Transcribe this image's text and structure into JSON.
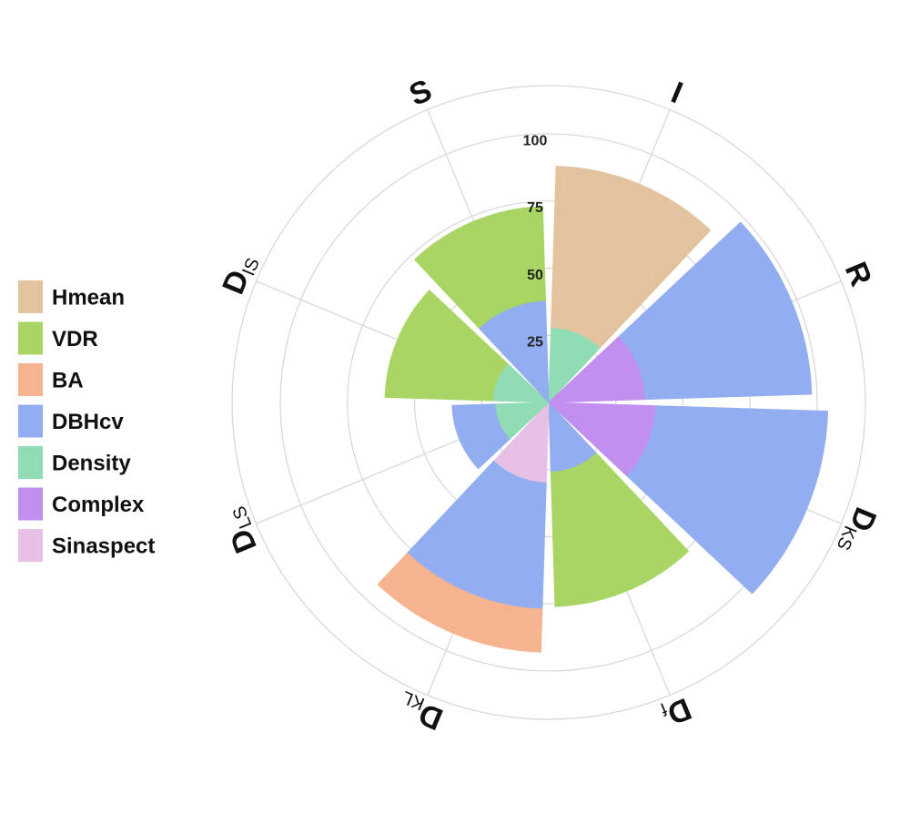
{
  "chart_data": {
    "type": "polar-stacked-bar",
    "categories": [
      "I",
      "R",
      "DKS",
      "Df",
      "DKL",
      "DLS",
      "DIS",
      "S"
    ],
    "series": [
      {
        "name": "Hmean",
        "color": "#e3c39d",
        "values": [
          60,
          null,
          null,
          null,
          null,
          null,
          null,
          null
        ]
      },
      {
        "name": "VDR",
        "color": "#a8d563",
        "values": [
          null,
          null,
          null,
          50,
          null,
          null,
          40,
          35
        ]
      },
      {
        "name": "BA",
        "color": "#f5b38f",
        "values": [
          null,
          null,
          null,
          null,
          16,
          null,
          null,
          null
        ]
      },
      {
        "name": "DBHcv",
        "color": "#92aef0",
        "values": [
          null,
          62,
          64,
          26,
          47,
          16,
          null,
          38
        ]
      },
      {
        "name": "Density",
        "color": "#90dcb5",
        "values": [
          28,
          null,
          null,
          null,
          null,
          20,
          21,
          null
        ]
      },
      {
        "name": "Complex",
        "color": "#c08ff0",
        "values": [
          null,
          36,
          40,
          null,
          null,
          null,
          null,
          null
        ]
      },
      {
        "name": "Sinaspect",
        "color": "#e7c0e6",
        "values": [
          null,
          null,
          null,
          null,
          30,
          null,
          null,
          null
        ]
      }
    ],
    "ylim": [
      0,
      118
    ],
    "yticks": [
      25,
      50,
      75,
      100
    ],
    "grid": true,
    "legend": "left"
  }
}
